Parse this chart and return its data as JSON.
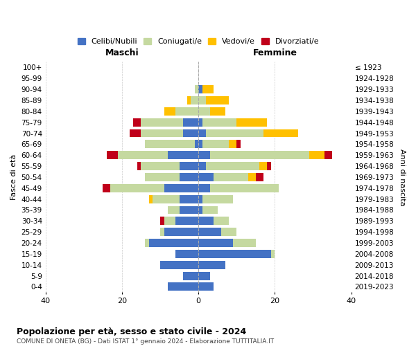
{
  "age_groups": [
    "0-4",
    "5-9",
    "10-14",
    "15-19",
    "20-24",
    "25-29",
    "30-34",
    "35-39",
    "40-44",
    "45-49",
    "50-54",
    "55-59",
    "60-64",
    "65-69",
    "70-74",
    "75-79",
    "80-84",
    "85-89",
    "90-94",
    "95-99",
    "100+"
  ],
  "birth_years": [
    "2019-2023",
    "2014-2018",
    "2009-2013",
    "2004-2008",
    "1999-2003",
    "1994-1998",
    "1989-1993",
    "1984-1988",
    "1979-1983",
    "1974-1978",
    "1969-1973",
    "1964-1968",
    "1959-1963",
    "1954-1958",
    "1949-1953",
    "1944-1948",
    "1939-1943",
    "1934-1938",
    "1929-1933",
    "1924-1928",
    "≤ 1923"
  ],
  "maschi": {
    "celibi": [
      8,
      4,
      10,
      6,
      13,
      9,
      6,
      5,
      5,
      9,
      5,
      5,
      8,
      1,
      4,
      4,
      0,
      0,
      0,
      0,
      0
    ],
    "coniugati": [
      0,
      0,
      0,
      0,
      1,
      1,
      3,
      3,
      7,
      14,
      9,
      10,
      13,
      13,
      11,
      11,
      6,
      2,
      1,
      0,
      0
    ],
    "vedovi": [
      0,
      0,
      0,
      0,
      0,
      0,
      0,
      0,
      1,
      0,
      0,
      0,
      0,
      0,
      0,
      0,
      3,
      1,
      0,
      0,
      0
    ],
    "divorziati": [
      0,
      0,
      0,
      0,
      0,
      0,
      1,
      0,
      0,
      2,
      0,
      1,
      3,
      0,
      3,
      2,
      0,
      0,
      0,
      0,
      0
    ]
  },
  "femmine": {
    "nubili": [
      4,
      3,
      7,
      19,
      9,
      6,
      4,
      1,
      1,
      3,
      4,
      2,
      3,
      1,
      2,
      1,
      0,
      0,
      1,
      0,
      0
    ],
    "coniugate": [
      0,
      0,
      0,
      1,
      6,
      4,
      4,
      4,
      8,
      18,
      9,
      14,
      26,
      7,
      15,
      9,
      3,
      2,
      0,
      0,
      0
    ],
    "vedove": [
      0,
      0,
      0,
      0,
      0,
      0,
      0,
      0,
      0,
      0,
      2,
      2,
      4,
      2,
      9,
      8,
      4,
      6,
      3,
      0,
      0
    ],
    "divorziate": [
      0,
      0,
      0,
      0,
      0,
      0,
      0,
      0,
      0,
      0,
      2,
      1,
      2,
      1,
      0,
      0,
      0,
      0,
      0,
      0,
      0
    ]
  },
  "colors": {
    "celibi_nubili": "#4472c4",
    "coniugati_e": "#c5d9a0",
    "vedovi_e": "#ffc000",
    "divorziati_e": "#c0001a"
  },
  "xlim": 40,
  "title": "Popolazione per età, sesso e stato civile - 2024",
  "subtitle": "COMUNE DI ONETA (BG) - Dati ISTAT 1° gennaio 2024 - Elaborazione TUTTITALIA.IT",
  "ylabel_left": "Fasce di età",
  "ylabel_right": "Anni di nascita",
  "xlabel_maschi": "Maschi",
  "xlabel_femmine": "Femmine",
  "legend_labels": [
    "Celibi/Nubili",
    "Coniugati/e",
    "Vedovi/e",
    "Divorziati/e"
  ]
}
